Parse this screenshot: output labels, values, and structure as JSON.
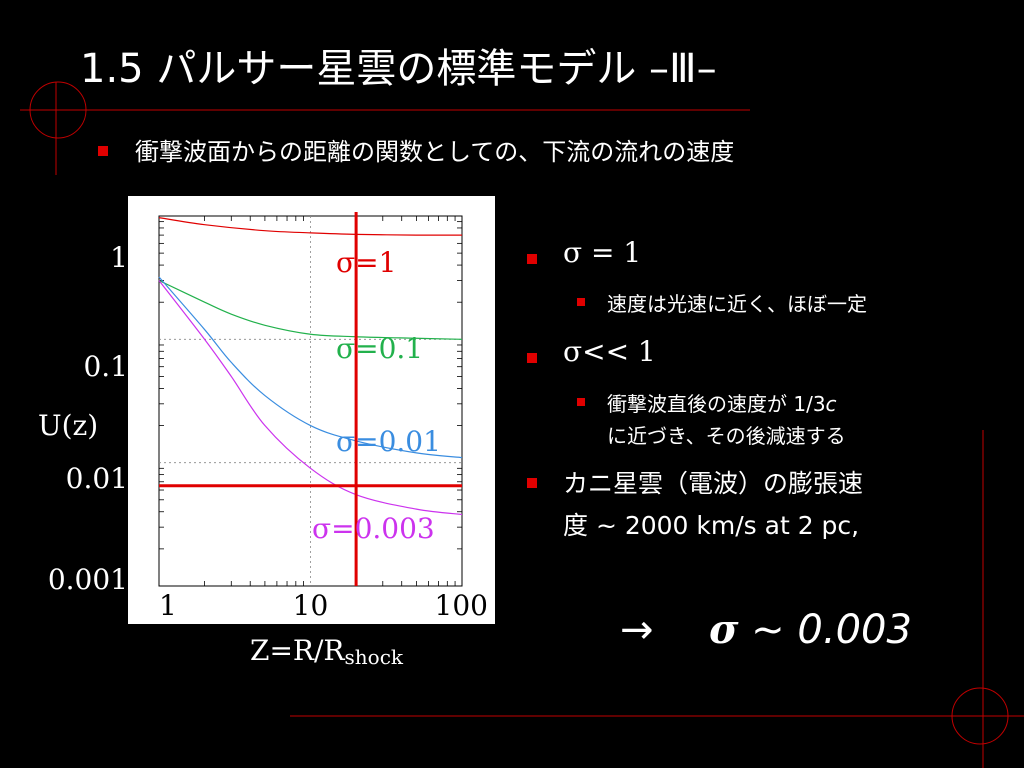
{
  "slide": {
    "title": "1.5 パルサー星雲の標準モデル –Ⅲ–",
    "subtitle": "衝撃波面からの距離の関数としての、下流の流れの速度"
  },
  "right_panel": {
    "b1_sym": "σ = 1",
    "b1_sub": "速度は光速に近く、ほぼ一定",
    "b2_sym": "σ<< 1",
    "b2_sub_line1_pre": "衝撃波直後の速度が 1/3",
    "b2_sub_line1_c": "c",
    "b2_sub_line2": "に近づき、その後減速する",
    "b3_line1": "カニ星雲（電波）の膨張速",
    "b3_line2": "度 ~ 2000 km/s  at 2 pc,",
    "arrow": "→",
    "arrow_sigma": "σ",
    "arrow_value": "~ 0.003"
  },
  "colors": {
    "accent_red": "#e00000",
    "sigma_1": "#e00000",
    "sigma_01": "#22b14c",
    "sigma_001": "#3a8de0",
    "sigma_0003": "#cc33ee"
  },
  "chart_data": {
    "type": "line",
    "xscale": "log",
    "yscale": "log",
    "xlim": [
      1,
      100
    ],
    "ylim": [
      0.001,
      1
    ],
    "xlabel_main": "Z=R/R",
    "xlabel_sub": "shock",
    "ylabel": "U(z)",
    "x_ticks": [
      "1",
      "10",
      "100"
    ],
    "y_ticks": [
      "1",
      "0.1",
      "0.01",
      "0.001"
    ],
    "series": [
      {
        "name": "σ=1",
        "color": "#e00000",
        "x": [
          1,
          2,
          5,
          10,
          20,
          50,
          100
        ],
        "y": [
          0.97,
          0.85,
          0.76,
          0.73,
          0.71,
          0.7,
          0.7
        ]
      },
      {
        "name": "σ=0.1",
        "color": "#22b14c",
        "x": [
          1,
          2,
          3,
          5,
          10,
          20,
          50,
          100
        ],
        "y": [
          0.3,
          0.2,
          0.16,
          0.13,
          0.11,
          0.105,
          0.102,
          0.1
        ]
      },
      {
        "name": "σ=0.01",
        "color": "#3a8de0",
        "x": [
          1,
          2,
          3,
          5,
          10,
          20,
          50,
          100
        ],
        "y": [
          0.32,
          0.12,
          0.065,
          0.035,
          0.02,
          0.015,
          0.012,
          0.011
        ]
      },
      {
        "name": "σ=0.003",
        "color": "#cc33ee",
        "x": [
          1,
          2,
          3,
          5,
          10,
          20,
          50,
          100
        ],
        "y": [
          0.3,
          0.1,
          0.05,
          0.02,
          0.009,
          0.0055,
          0.0042,
          0.0038
        ]
      }
    ],
    "markers": {
      "vline_x": 20,
      "hline_y": 0.0065,
      "color": "#e00000"
    }
  }
}
